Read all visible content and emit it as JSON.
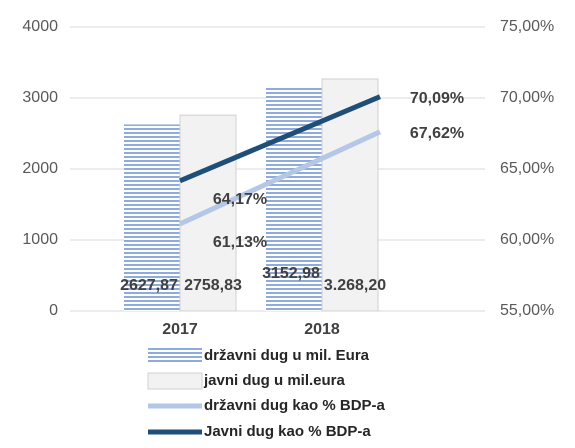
{
  "chart_data": {
    "type": "bar-line",
    "categories": [
      "2017",
      "2018"
    ],
    "series": [
      {
        "name": "državni dug u mil. Eura",
        "type": "bar",
        "color": "#8faadc",
        "values": [
          2627.87,
          3152.98
        ],
        "value_labels": [
          "2627,87",
          "3152,98"
        ]
      },
      {
        "name": "javni dug u mil.eura",
        "type": "bar",
        "color": "#f2f2f2",
        "values": [
          2758.83,
          3268.2
        ],
        "value_labels": [
          "2758,83",
          "3.268,20"
        ]
      },
      {
        "name": "državni dug kao % BDP-a",
        "type": "line",
        "axis": "y2",
        "color": "#b4c7e7",
        "values": [
          61.13,
          67.62
        ],
        "value_labels": [
          "61,13%",
          "67,62%"
        ]
      },
      {
        "name": "Javni dug kao % BDP-a",
        "type": "line",
        "axis": "y2",
        "color": "#1f4e79",
        "values": [
          64.17,
          70.09
        ],
        "value_labels": [
          "64,17%",
          "70,09%"
        ]
      }
    ],
    "ylim": [
      0,
      4000
    ],
    "yticks": [
      0,
      1000,
      2000,
      3000,
      4000
    ],
    "y2lim": [
      55,
      75
    ],
    "y2ticks": [
      {
        "value": 55,
        "label": "55,00%"
      },
      {
        "value": 60,
        "label": "60,00%"
      },
      {
        "value": 65,
        "label": "65,00%"
      },
      {
        "value": 70,
        "label": "70,00%"
      },
      {
        "value": 75,
        "label": "75,00%"
      }
    ],
    "grid": true
  }
}
